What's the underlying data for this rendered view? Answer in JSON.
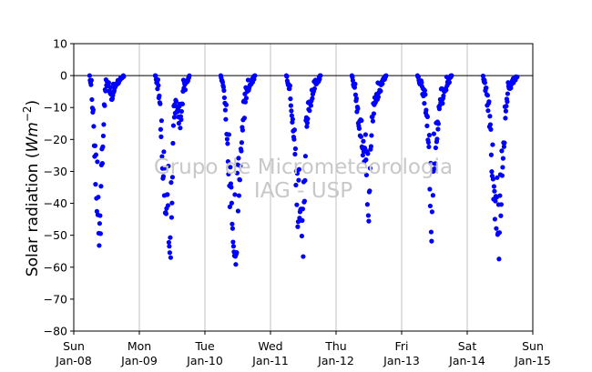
{
  "chart_data": {
    "type": "scatter",
    "ylabel": "Solar radiation (Wm⁻²)",
    "ylabel_main": "Solar radiation (",
    "ylabel_unit": "Wm",
    "ylabel_exp": "−2",
    "ylabel_close": ")",
    "ylim": [
      -80,
      10
    ],
    "yticks": [
      10,
      0,
      -10,
      -20,
      -30,
      -40,
      -50,
      -60,
      -70,
      -80
    ],
    "ytick_labels": [
      "10",
      "0",
      "−10",
      "−20",
      "−30",
      "−40",
      "−50",
      "−60",
      "−70",
      "−80"
    ],
    "xlim_days": [
      0,
      7
    ],
    "xticks": [
      {
        "day": 0,
        "weekday": "Sun",
        "date": "Jan-08"
      },
      {
        "day": 1,
        "weekday": "Mon",
        "date": "Jan-09"
      },
      {
        "day": 2,
        "weekday": "Tue",
        "date": "Jan-10"
      },
      {
        "day": 3,
        "weekday": "Wed",
        "date": "Jan-11"
      },
      {
        "day": 4,
        "weekday": "Thu",
        "date": "Jan-12"
      },
      {
        "day": 5,
        "weekday": "Fri",
        "date": "Jan-13"
      },
      {
        "day": 6,
        "weekday": "Sat",
        "date": "Jan-14"
      },
      {
        "day": 7,
        "weekday": "Sun",
        "date": "Jan-15"
      }
    ],
    "vertical_gridlines": true,
    "zero_line": true,
    "marker_color": "#0000ff",
    "sample_interval_minutes": 10,
    "daytime_window_hours": [
      5.8,
      18.3
    ],
    "daily_envelope": [
      {
        "date": "Jan-08",
        "profile": [
          [
            5.8,
            0
          ],
          [
            6.5,
            -5
          ],
          [
            7.5,
            -25
          ],
          [
            8.5,
            -45
          ],
          [
            9.2,
            -55
          ],
          [
            9.5,
            -62
          ],
          [
            10.0,
            -45
          ],
          [
            10.5,
            -30
          ],
          [
            11.0,
            -15
          ],
          [
            11.5,
            -5
          ],
          [
            12.0,
            -3
          ],
          [
            13.0,
            -5
          ],
          [
            14.0,
            -8
          ],
          [
            15.0,
            -4
          ],
          [
            16.0,
            -2
          ],
          [
            18.3,
            0
          ]
        ]
      },
      {
        "date": "Jan-09",
        "profile": [
          [
            5.8,
            0
          ],
          [
            7.0,
            -5
          ],
          [
            8.0,
            -20
          ],
          [
            9.0,
            -40
          ],
          [
            10.0,
            -50
          ],
          [
            11.0,
            -55
          ],
          [
            11.5,
            -62
          ],
          [
            12.0,
            -40
          ],
          [
            12.5,
            -15
          ],
          [
            13.5,
            -10
          ],
          [
            15.0,
            -18
          ],
          [
            16.0,
            -5
          ],
          [
            18.3,
            0
          ]
        ]
      },
      {
        "date": "Jan-10",
        "profile": [
          [
            5.8,
            0
          ],
          [
            7.0,
            -5
          ],
          [
            8.0,
            -20
          ],
          [
            9.0,
            -40
          ],
          [
            10.0,
            -50
          ],
          [
            11.0,
            -60
          ],
          [
            11.5,
            -63
          ],
          [
            12.0,
            -45
          ],
          [
            13.0,
            -30
          ],
          [
            14.0,
            -15
          ],
          [
            15.0,
            -8
          ],
          [
            16.5,
            -3
          ],
          [
            18.3,
            0
          ]
        ]
      },
      {
        "date": "Jan-11",
        "profile": [
          [
            5.8,
            0
          ],
          [
            7.0,
            -5
          ],
          [
            8.0,
            -15
          ],
          [
            9.0,
            -30
          ],
          [
            10.0,
            -50
          ],
          [
            11.0,
            -45
          ],
          [
            12.0,
            -58
          ],
          [
            12.5,
            -40
          ],
          [
            13.0,
            -20
          ],
          [
            14.0,
            -12
          ],
          [
            15.0,
            -8
          ],
          [
            16.5,
            -3
          ],
          [
            18.3,
            0
          ]
        ]
      },
      {
        "date": "Jan-12",
        "profile": [
          [
            5.8,
            0
          ],
          [
            7.0,
            -5
          ],
          [
            8.0,
            -15
          ],
          [
            9.0,
            -20
          ],
          [
            10.0,
            -25
          ],
          [
            11.0,
            -35
          ],
          [
            12.0,
            -50
          ],
          [
            12.5,
            -35
          ],
          [
            13.0,
            -20
          ],
          [
            14.0,
            -10
          ],
          [
            15.0,
            -8
          ],
          [
            16.5,
            -3
          ],
          [
            18.3,
            0
          ]
        ]
      },
      {
        "date": "Jan-13",
        "profile": [
          [
            5.8,
            0
          ],
          [
            7.0,
            -3
          ],
          [
            8.0,
            -8
          ],
          [
            9.0,
            -12
          ],
          [
            10.0,
            -25
          ],
          [
            10.5,
            -45
          ],
          [
            11.0,
            -55
          ],
          [
            11.5,
            -40
          ],
          [
            12.0,
            -30
          ],
          [
            13.0,
            -20
          ],
          [
            14.0,
            -10
          ],
          [
            15.0,
            -8
          ],
          [
            16.5,
            -3
          ],
          [
            18.3,
            0
          ]
        ]
      },
      {
        "date": "Jan-14",
        "profile": [
          [
            5.8,
            0
          ],
          [
            7.0,
            -5
          ],
          [
            8.0,
            -15
          ],
          [
            9.0,
            -30
          ],
          [
            10.0,
            -45
          ],
          [
            11.0,
            -55
          ],
          [
            11.5,
            -60
          ],
          [
            12.0,
            -55
          ],
          [
            13.0,
            -30
          ],
          [
            14.0,
            -15
          ],
          [
            15.0,
            -5
          ],
          [
            16.5,
            -2
          ],
          [
            18.3,
            0
          ]
        ]
      }
    ],
    "watermark": [
      "Grupo de Micrometeorologia",
      "IAG - USP"
    ]
  }
}
